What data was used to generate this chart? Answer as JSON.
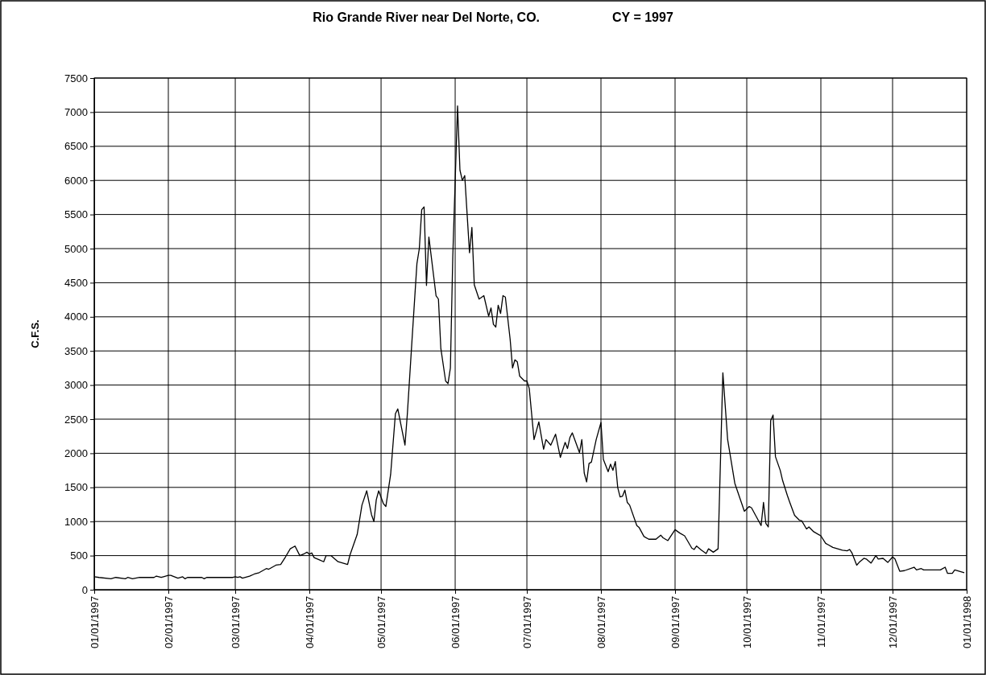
{
  "chart_data": {
    "type": "line",
    "title": "Rio Grande River near Del Norte, CO.",
    "subtitle": "CY = 1997",
    "ylabel": "C.F.S.",
    "xlim": [
      "1997-01-01",
      "1998-01-01"
    ],
    "xticks": [
      {
        "value": "1997-01-01",
        "label": "01/01/1997"
      },
      {
        "value": "1997-02-01",
        "label": "02/01/1997"
      },
      {
        "value": "1997-03-01",
        "label": "03/01/1997"
      },
      {
        "value": "1997-04-01",
        "label": "04/01/1997"
      },
      {
        "value": "1997-05-01",
        "label": "05/01/1997"
      },
      {
        "value": "1997-06-01",
        "label": "06/01/1997"
      },
      {
        "value": "1997-07-01",
        "label": "07/01/1997"
      },
      {
        "value": "1997-08-01",
        "label": "08/01/1997"
      },
      {
        "value": "1997-09-01",
        "label": "09/01/1997"
      },
      {
        "value": "1997-10-01",
        "label": "10/01/1997"
      },
      {
        "value": "1997-11-01",
        "label": "11/01/1997"
      },
      {
        "value": "1997-12-01",
        "label": "12/01/1997"
      },
      {
        "value": "1998-01-01",
        "label": "01/01/1998"
      }
    ],
    "ylim": [
      0,
      7500
    ],
    "yticks": [
      0,
      500,
      1000,
      1500,
      2000,
      2500,
      3000,
      3500,
      4000,
      4500,
      5000,
      5500,
      6000,
      6500,
      7000,
      7500
    ],
    "grid": true,
    "marker": "none",
    "line_style": "solid",
    "series": [
      {
        "color": "#000000",
        "x": [
          "1997-01-01",
          "1997-01-03",
          "1997-01-08",
          "1997-01-10",
          "1997-01-14",
          "1997-01-15",
          "1997-01-17",
          "1997-01-20",
          "1997-01-26",
          "1997-01-27",
          "1997-01-29",
          "1997-01-30",
          "1997-02-01",
          "1997-02-02",
          "1997-02-05",
          "1997-02-07",
          "1997-02-08",
          "1997-02-09",
          "1997-02-15",
          "1997-02-16",
          "1997-02-17",
          "1997-02-28",
          "1997-03-01",
          "1997-03-02",
          "1997-03-03",
          "1997-03-04",
          "1997-03-07",
          "1997-03-09",
          "1997-03-11",
          "1997-03-14",
          "1997-03-15",
          "1997-03-18",
          "1997-03-20",
          "1997-03-22",
          "1997-03-24",
          "1997-03-26",
          "1997-03-28",
          "1997-03-30",
          "1997-03-31",
          "1997-04-01",
          "1997-04-02",
          "1997-04-03",
          "1997-04-05",
          "1997-04-07",
          "1997-04-08",
          "1997-04-10",
          "1997-04-13",
          "1997-04-15",
          "1997-04-17",
          "1997-04-18",
          "1997-04-21",
          "1997-04-23",
          "1997-04-25",
          "1997-04-27",
          "1997-04-28",
          "1997-04-29",
          "1997-04-30",
          "1997-05-02",
          "1997-05-03",
          "1997-05-05",
          "1997-05-07",
          "1997-05-08",
          "1997-05-11",
          "1997-05-12",
          "1997-05-14",
          "1997-05-16",
          "1997-05-17",
          "1997-05-18",
          "1997-05-19",
          "1997-05-20",
          "1997-05-21",
          "1997-05-24",
          "1997-05-25",
          "1997-05-26",
          "1997-05-28",
          "1997-05-29",
          "1997-05-30",
          "1997-05-31",
          "1997-06-02",
          "1997-06-03",
          "1997-06-04",
          "1997-06-05",
          "1997-06-07",
          "1997-06-08",
          "1997-06-09",
          "1997-06-11",
          "1997-06-13",
          "1997-06-15",
          "1997-06-16",
          "1997-06-17",
          "1997-06-18",
          "1997-06-19",
          "1997-06-20",
          "1997-06-21",
          "1997-06-22",
          "1997-06-24",
          "1997-06-25",
          "1997-06-26",
          "1997-06-27",
          "1997-06-28",
          "1997-06-30",
          "1997-07-01",
          "1997-07-02",
          "1997-07-04",
          "1997-07-06",
          "1997-07-08",
          "1997-07-09",
          "1997-07-11",
          "1997-07-13",
          "1997-07-15",
          "1997-07-17",
          "1997-07-18",
          "1997-07-19",
          "1997-07-20",
          "1997-07-23",
          "1997-07-24",
          "1997-07-25",
          "1997-07-26",
          "1997-07-27",
          "1997-07-28",
          "1997-07-30",
          "1997-08-01",
          "1997-08-02",
          "1997-08-04",
          "1997-08-05",
          "1997-08-06",
          "1997-08-07",
          "1997-08-08",
          "1997-08-09",
          "1997-08-10",
          "1997-08-11",
          "1997-08-12",
          "1997-08-13",
          "1997-08-16",
          "1997-08-17",
          "1997-08-19",
          "1997-08-21",
          "1997-08-24",
          "1997-08-26",
          "1997-08-27",
          "1997-08-29",
          "1997-09-01",
          "1997-09-03",
          "1997-09-05",
          "1997-09-08",
          "1997-09-09",
          "1997-09-10",
          "1997-09-12",
          "1997-09-14",
          "1997-09-15",
          "1997-09-17",
          "1997-09-19",
          "1997-09-21",
          "1997-09-23",
          "1997-09-26",
          "1997-09-30",
          "1997-10-02",
          "1997-10-03",
          "1997-10-05",
          "1997-10-07",
          "1997-10-08",
          "1997-10-09",
          "1997-10-10",
          "1997-10-11",
          "1997-10-12",
          "1997-10-13",
          "1997-10-15",
          "1997-10-16",
          "1997-10-18",
          "1997-10-19",
          "1997-10-21",
          "1997-10-23",
          "1997-10-24",
          "1997-10-26",
          "1997-10-27",
          "1997-10-29",
          "1997-11-01",
          "1997-11-03",
          "1997-11-04",
          "1997-11-06",
          "1997-11-08",
          "1997-11-10",
          "1997-11-12",
          "1997-11-13",
          "1997-11-14",
          "1997-11-16",
          "1997-11-17",
          "1997-11-19",
          "1997-11-20",
          "1997-11-22",
          "1997-11-24",
          "1997-11-25",
          "1997-11-27",
          "1997-11-29",
          "1997-12-01",
          "1997-12-02",
          "1997-12-04",
          "1997-12-06",
          "1997-12-10",
          "1997-12-11",
          "1997-12-13",
          "1997-12-14",
          "1997-12-21",
          "1997-12-23",
          "1997-12-24",
          "1997-12-26",
          "1997-12-27",
          "1997-12-31"
        ],
        "values": [
          190,
          180,
          160,
          180,
          160,
          180,
          160,
          180,
          180,
          200,
          180,
          190,
          210,
          210,
          170,
          190,
          160,
          180,
          180,
          160,
          180,
          180,
          190,
          180,
          190,
          170,
          200,
          230,
          250,
          310,
          300,
          360,
          370,
          480,
          600,
          640,
          500,
          530,
          550,
          520,
          540,
          470,
          440,
          410,
          500,
          500,
          410,
          390,
          370,
          510,
          810,
          1240,
          1450,
          1100,
          1000,
          1320,
          1450,
          1260,
          1220,
          1690,
          2580,
          2650,
          2120,
          2580,
          3690,
          4780,
          5000,
          5570,
          5610,
          4460,
          5170,
          4310,
          4260,
          3540,
          3060,
          3020,
          3250,
          4880,
          7090,
          6150,
          6000,
          6070,
          4940,
          5310,
          4470,
          4260,
          4310,
          4010,
          4130,
          3890,
          3850,
          4170,
          4050,
          4310,
          4290,
          3670,
          3250,
          3370,
          3340,
          3130,
          3060,
          3060,
          2950,
          2200,
          2460,
          2060,
          2200,
          2120,
          2280,
          1940,
          2160,
          2070,
          2230,
          2300,
          2010,
          2200,
          1710,
          1580,
          1850,
          1870,
          2200,
          2450,
          1910,
          1730,
          1840,
          1750,
          1880,
          1500,
          1360,
          1370,
          1460,
          1280,
          1240,
          940,
          910,
          780,
          740,
          740,
          800,
          760,
          720,
          880,
          830,
          790,
          610,
          590,
          640,
          580,
          530,
          600,
          550,
          600,
          3180,
          2200,
          1560,
          1150,
          1220,
          1200,
          1070,
          940,
          1280,
          970,
          920,
          2480,
          2560,
          1950,
          1750,
          1600,
          1380,
          1280,
          1090,
          1020,
          1010,
          890,
          920,
          850,
          790,
          680,
          660,
          620,
          600,
          580,
          570,
          590,
          540,
          360,
          400,
          460,
          450,
          390,
          500,
          450,
          460,
          400,
          480,
          450,
          270,
          280,
          330,
          290,
          310,
          290,
          290,
          330,
          240,
          240,
          290,
          250
        ]
      }
    ]
  }
}
